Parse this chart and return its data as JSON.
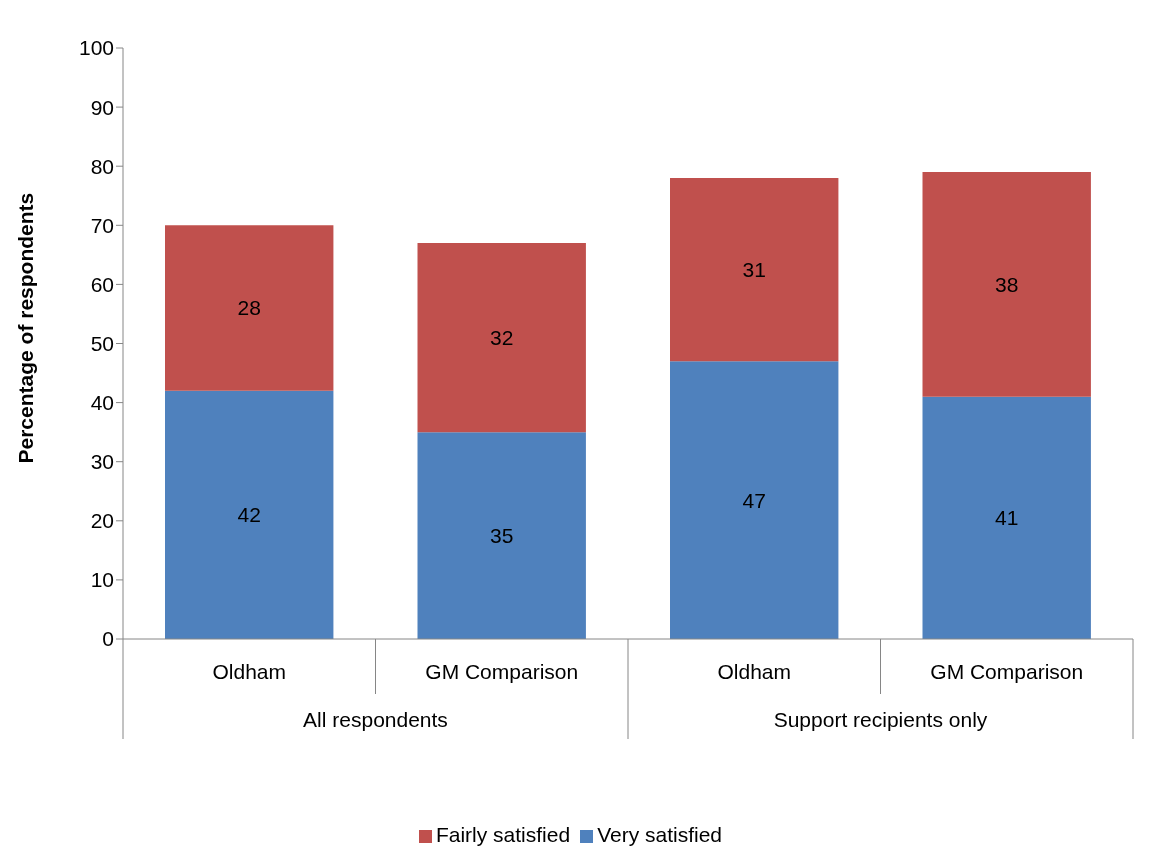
{
  "chart_data": {
    "type": "bar",
    "stacked": true,
    "ylabel": "Percentage of respondents",
    "categories": [
      "Oldham",
      "GM Comparison",
      "Oldham",
      "GM Comparison"
    ],
    "annotations": [
      "All respondents",
      "Support recipients only"
    ],
    "series": [
      {
        "name": "Very satisfied",
        "color": "#4f81bd",
        "values": [
          42,
          35,
          47,
          41
        ]
      },
      {
        "name": "Fairly satisfied",
        "color": "#c0504d",
        "values": [
          28,
          32,
          31,
          38
        ]
      }
    ],
    "ylim": [
      0,
      100
    ],
    "yticks": [
      0,
      10,
      20,
      30,
      40,
      50,
      60,
      70,
      80,
      90,
      100
    ],
    "data_labels": true,
    "grid": false,
    "legend": "bottom"
  }
}
